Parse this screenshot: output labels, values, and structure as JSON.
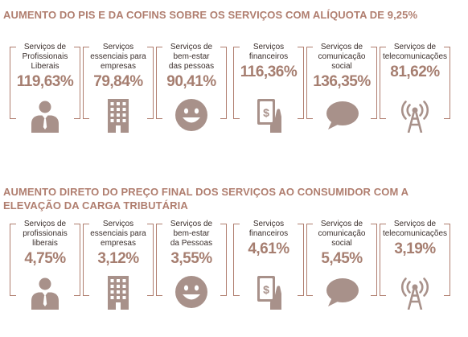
{
  "section1": {
    "title": "AUMENTO DO PIS E DA COFINS SOBRE OS SERVIÇOS COM ALÍQUOTA DE 9,25%",
    "items": [
      {
        "label": "Serviços de\nProfissionais\nLiberais",
        "value": "119,63%",
        "icon": "businessman-icon"
      },
      {
        "label": "Serviços\nessenciais para\nempresas",
        "value": "79,84%",
        "icon": "building-icon"
      },
      {
        "label": "Serviços de\nbem-estar\ndas pessoas",
        "value": "90,41%",
        "icon": "smiley-icon"
      },
      {
        "label": "Serviços\nfinanceiros",
        "value": "116,36%",
        "icon": "money-hand-icon"
      },
      {
        "label": "Serviços de\ncomunicação\nsocial",
        "value": "136,35%",
        "icon": "speech-bubble-icon"
      },
      {
        "label": "Serviços de\ntelecomunicações",
        "value": "81,62%",
        "icon": "antenna-icon"
      }
    ]
  },
  "section2": {
    "title": "AUMENTO DIRETO DO PREÇO FINAL DOS SERVIÇOS AO CONSUMIDOR COM A ELEVAÇÃO DA CARGA TRIBUTÁRIA",
    "items": [
      {
        "label": "Serviços de\nprofissionais\nliberais",
        "value": "4,75%",
        "icon": "businessman-icon"
      },
      {
        "label": "Serviços\nessenciais para\nempresas",
        "value": "3,12%",
        "icon": "building-icon"
      },
      {
        "label": "Serviços de\nbem-estar\nda Pessoas",
        "value": "3,55%",
        "icon": "smiley-icon"
      },
      {
        "label": "Serviços\nfinanceiros",
        "value": "4,61%",
        "icon": "money-hand-icon"
      },
      {
        "label": "Serviços de\ncomunicação\nsocial",
        "value": "5,45%",
        "icon": "speech-bubble-icon"
      },
      {
        "label": "Serviços de\ntelecomunicações",
        "value": "3,19%",
        "icon": "antenna-icon"
      }
    ]
  },
  "colors": {
    "accent": "#b07e6f",
    "icon": "#a8918a",
    "text": "#3a2e2b"
  }
}
